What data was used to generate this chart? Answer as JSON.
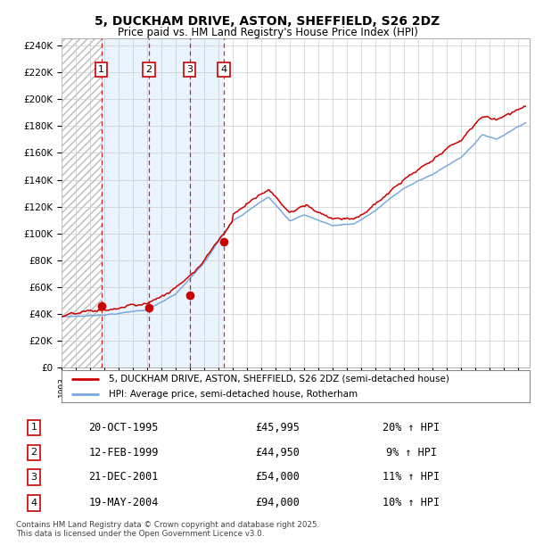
{
  "title1": "5, DUCKHAM DRIVE, ASTON, SHEFFIELD, S26 2DZ",
  "title2": "Price paid vs. HM Land Registry's House Price Index (HPI)",
  "transactions": [
    {
      "num": 1,
      "date_dec": 1995.79,
      "price": 45995,
      "label": "20-OCT-1995",
      "price_str": "£45,995",
      "hpi_str": "20% ↑ HPI"
    },
    {
      "num": 2,
      "date_dec": 1999.12,
      "price": 44950,
      "label": "12-FEB-1999",
      "price_str": "£44,950",
      "hpi_str": "9% ↑ HPI"
    },
    {
      "num": 3,
      "date_dec": 2001.97,
      "price": 54000,
      "label": "21-DEC-2001",
      "price_str": "£54,000",
      "hpi_str": "11% ↑ HPI"
    },
    {
      "num": 4,
      "date_dec": 2004.38,
      "price": 94000,
      "label": "19-MAY-2004",
      "price_str": "£94,000",
      "hpi_str": "10% ↑ HPI"
    }
  ],
  "legend_line1": "5, DUCKHAM DRIVE, ASTON, SHEFFIELD, S26 2DZ (semi-detached house)",
  "legend_line2": "HPI: Average price, semi-detached house, Rotherham",
  "footnote": "Contains HM Land Registry data © Crown copyright and database right 2025.\nThis data is licensed under the Open Government Licence v3.0.",
  "red_color": "#cc0000",
  "blue_color": "#7aaadd",
  "hatch_color": "#bbbbbb",
  "bg_shade_color": "#ddeeff",
  "grid_color": "#cccccc",
  "chart_bg": "#ffffff",
  "fig_bg": "#ffffff",
  "ylim_max": 245000,
  "xlim_start": 1993.0,
  "xlim_end": 2025.8
}
